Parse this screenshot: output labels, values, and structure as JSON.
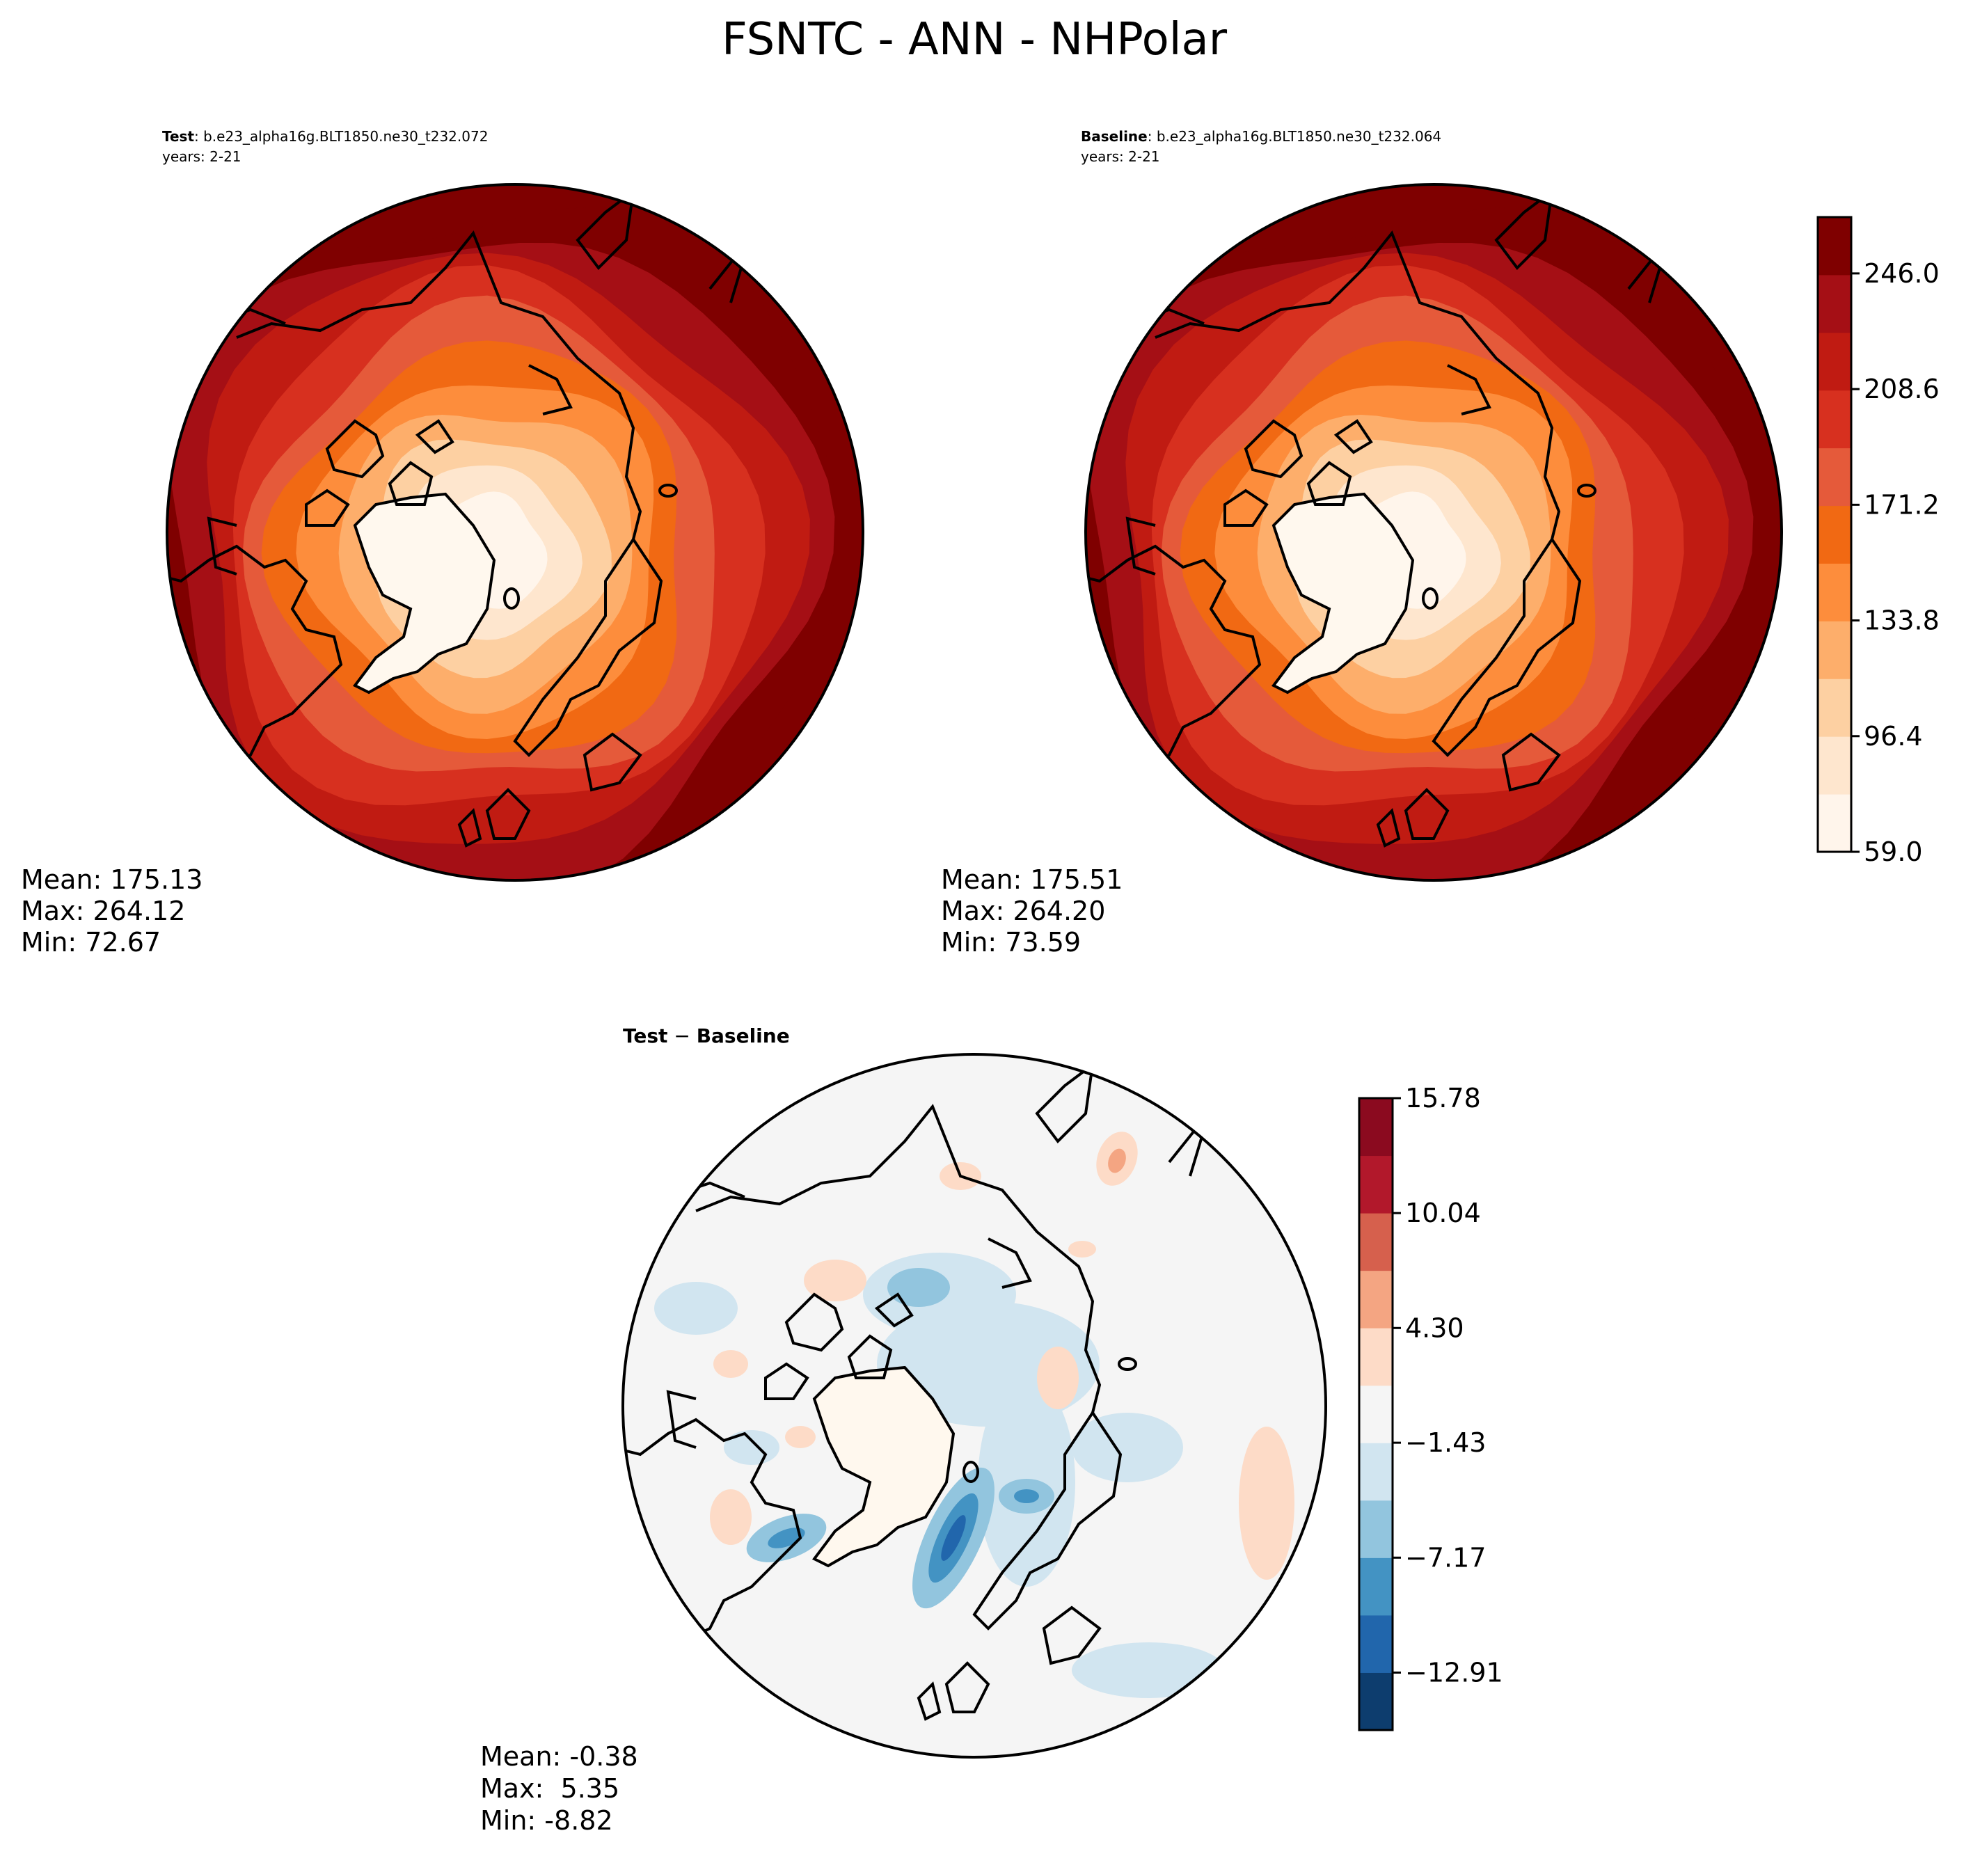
{
  "figure": {
    "title": "FSNTC - ANN - NHPolar"
  },
  "chart_data": [
    {
      "type": "contour-map",
      "projection": "north-polar-stereographic",
      "role": "test",
      "title_label": "Test",
      "case": ": b.e23_alpha16g.BLT1850.ne30_t232.072",
      "years": "years: 2-21",
      "stats": {
        "mean": "Mean: 175.13",
        "max": "Max: 264.12",
        "min": "Min: 72.67"
      }
    },
    {
      "type": "contour-map",
      "projection": "north-polar-stereographic",
      "role": "baseline",
      "title_label": "Baseline",
      "case": ": b.e23_alpha16g.BLT1850.ne30_t232.064",
      "years": "years: 2-21",
      "stats": {
        "mean": "Mean: 175.51",
        "max": "Max: 264.20",
        "min": "Min: 73.59"
      },
      "colorbar": {
        "range": [
          59.0,
          264.2
        ],
        "levels": 11,
        "tick_values": [
          59.0,
          96.4,
          133.8,
          171.2,
          208.6,
          246.0
        ],
        "tick_labels": [
          "59.0",
          "96.4",
          "133.8",
          "171.2",
          "208.6",
          "246.0"
        ],
        "colors": [
          "#fff5eb",
          "#fee6ce",
          "#fdd0a2",
          "#fdae6b",
          "#fd8d3c",
          "#f16913",
          "#e55a3a",
          "#d7301f",
          "#c01b12",
          "#a50f15",
          "#7f0000"
        ]
      }
    },
    {
      "type": "contour-map",
      "projection": "north-polar-stereographic",
      "role": "difference",
      "title_test": "Test",
      "title_sep": " − ",
      "title_base": "Baseline",
      "stats": {
        "mean": "Mean: -0.38",
        "max": "Max:  5.35",
        "min": "Min: -8.82"
      },
      "colorbar": {
        "range": [
          -15.78,
          15.78
        ],
        "levels": 11,
        "tick_values": [
          -12.91,
          -7.17,
          -1.43,
          4.3,
          10.04,
          15.78
        ],
        "tick_labels": [
          "−12.91",
          "−7.17",
          "−1.43",
          "4.30",
          "10.04",
          "15.78"
        ],
        "colors": [
          "#0d3d6e",
          "#2166ac",
          "#4393c3",
          "#92c5de",
          "#d1e5f0",
          "#f5f5f5",
          "#fddbc7",
          "#f4a582",
          "#d6604d",
          "#b2182b",
          "#8b0a1f"
        ]
      }
    }
  ]
}
